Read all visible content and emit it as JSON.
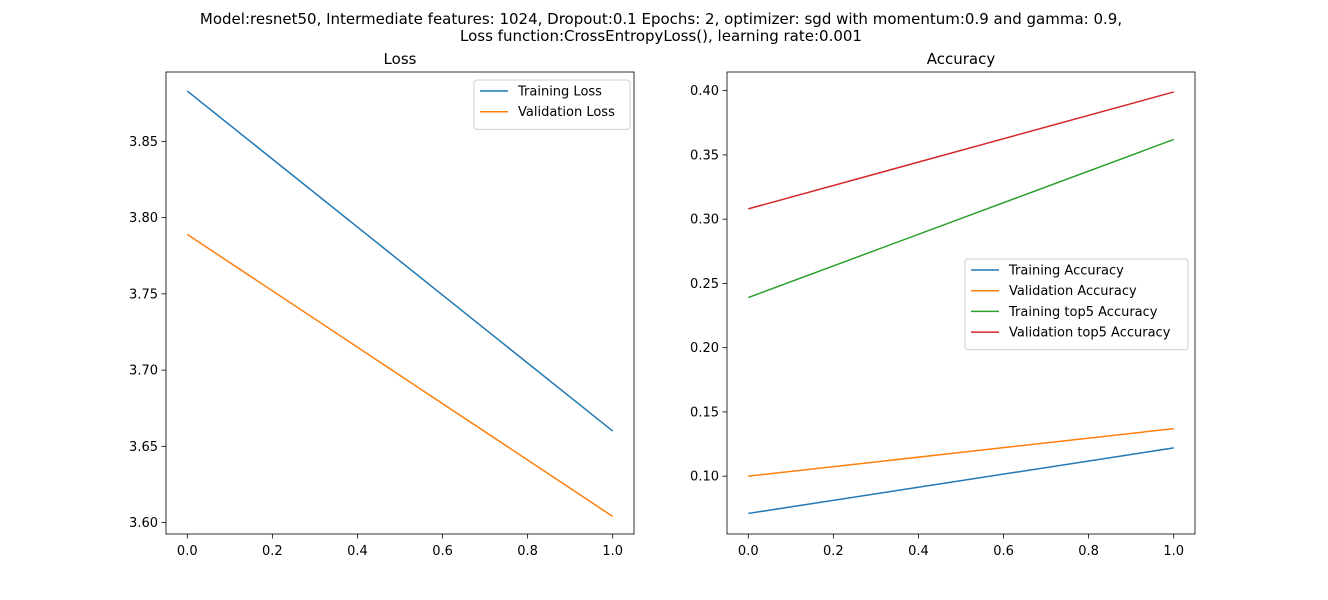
{
  "figure": {
    "suptitle_lines": [
      "Model:resnet50, Intermediate features: 1024, Dropout:0.1 Epochs: 2, optimizer: sgd with momentum:0.9 and gamma: 0.9,",
      "Loss function:CrossEntropyLoss(), learning rate:0.001"
    ]
  },
  "chart_data": [
    {
      "type": "line",
      "title": "Loss",
      "xlabel": "",
      "ylabel": "",
      "xlim": [
        -0.05,
        1.05
      ],
      "ylim": [
        3.5925,
        3.8955
      ],
      "x_ticks": [
        0.0,
        0.2,
        0.4,
        0.6,
        0.8,
        1.0
      ],
      "x_tick_labels": [
        "0.0",
        "0.2",
        "0.4",
        "0.6",
        "0.8",
        "1.0"
      ],
      "y_ticks": [
        3.6,
        3.65,
        3.7,
        3.75,
        3.8,
        3.85
      ],
      "y_tick_labels": [
        "3.60",
        "3.65",
        "3.70",
        "3.75",
        "3.80",
        "3.85"
      ],
      "grid": false,
      "legend_position": "upper-right",
      "series": [
        {
          "name": "Training Loss",
          "color": "#1f77b4",
          "x": [
            0,
            1
          ],
          "y": [
            3.883,
            3.66
          ]
        },
        {
          "name": "Validation Loss",
          "color": "#ff7f0e",
          "x": [
            0,
            1
          ],
          "y": [
            3.789,
            3.604
          ]
        }
      ]
    },
    {
      "type": "line",
      "title": "Accuracy",
      "xlabel": "",
      "ylabel": "",
      "xlim": [
        -0.05,
        1.05
      ],
      "ylim": [
        0.055,
        0.4145
      ],
      "x_ticks": [
        0.0,
        0.2,
        0.4,
        0.6,
        0.8,
        1.0
      ],
      "x_tick_labels": [
        "0.0",
        "0.2",
        "0.4",
        "0.6",
        "0.8",
        "1.0"
      ],
      "y_ticks": [
        0.1,
        0.15,
        0.2,
        0.25,
        0.3,
        0.35,
        0.4
      ],
      "y_tick_labels": [
        "0.10",
        "0.15",
        "0.20",
        "0.25",
        "0.30",
        "0.35",
        "0.40"
      ],
      "grid": false,
      "legend_position": "center-right",
      "series": [
        {
          "name": "Training Accuracy",
          "color": "#1f77b4",
          "x": [
            0,
            1
          ],
          "y": [
            0.071,
            0.122
          ]
        },
        {
          "name": "Validation Accuracy",
          "color": "#ff7f0e",
          "x": [
            0,
            1
          ],
          "y": [
            0.1,
            0.137
          ]
        },
        {
          "name": "Training top5 Accuracy",
          "color": "#2ca02c",
          "x": [
            0,
            1
          ],
          "y": [
            0.239,
            0.362
          ]
        },
        {
          "name": "Validation top5 Accuracy",
          "color": "#d62728",
          "x": [
            0,
            1
          ],
          "y": [
            0.308,
            0.399
          ]
        }
      ]
    }
  ]
}
